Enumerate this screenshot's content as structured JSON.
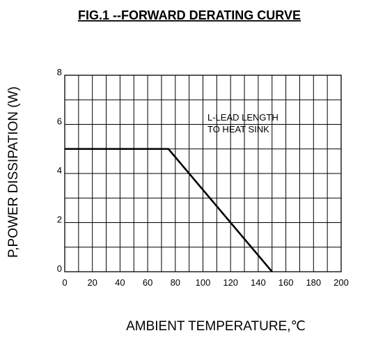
{
  "chart_data": {
    "type": "line",
    "title": "FIG.1 --FORWARD DERATING CURVE",
    "xlabel": "AMBIENT TEMPERATURE,℃",
    "ylabel": "P,POWER DISSIPATION (W)",
    "xlim": [
      0,
      200
    ],
    "ylim": [
      0,
      8
    ],
    "x_ticks": [
      "0",
      "20",
      "40",
      "60",
      "80",
      "100",
      "120",
      "140",
      "160",
      "180",
      "200"
    ],
    "y_ticks": [
      "0",
      "2",
      "4",
      "6",
      "8"
    ],
    "grid": true,
    "annotation": [
      "L-LEAD LENGTH",
      "TO HEAT SINK"
    ],
    "series": [
      {
        "x": [
          0,
          75,
          150
        ],
        "y": [
          5,
          5,
          0
        ]
      }
    ]
  }
}
